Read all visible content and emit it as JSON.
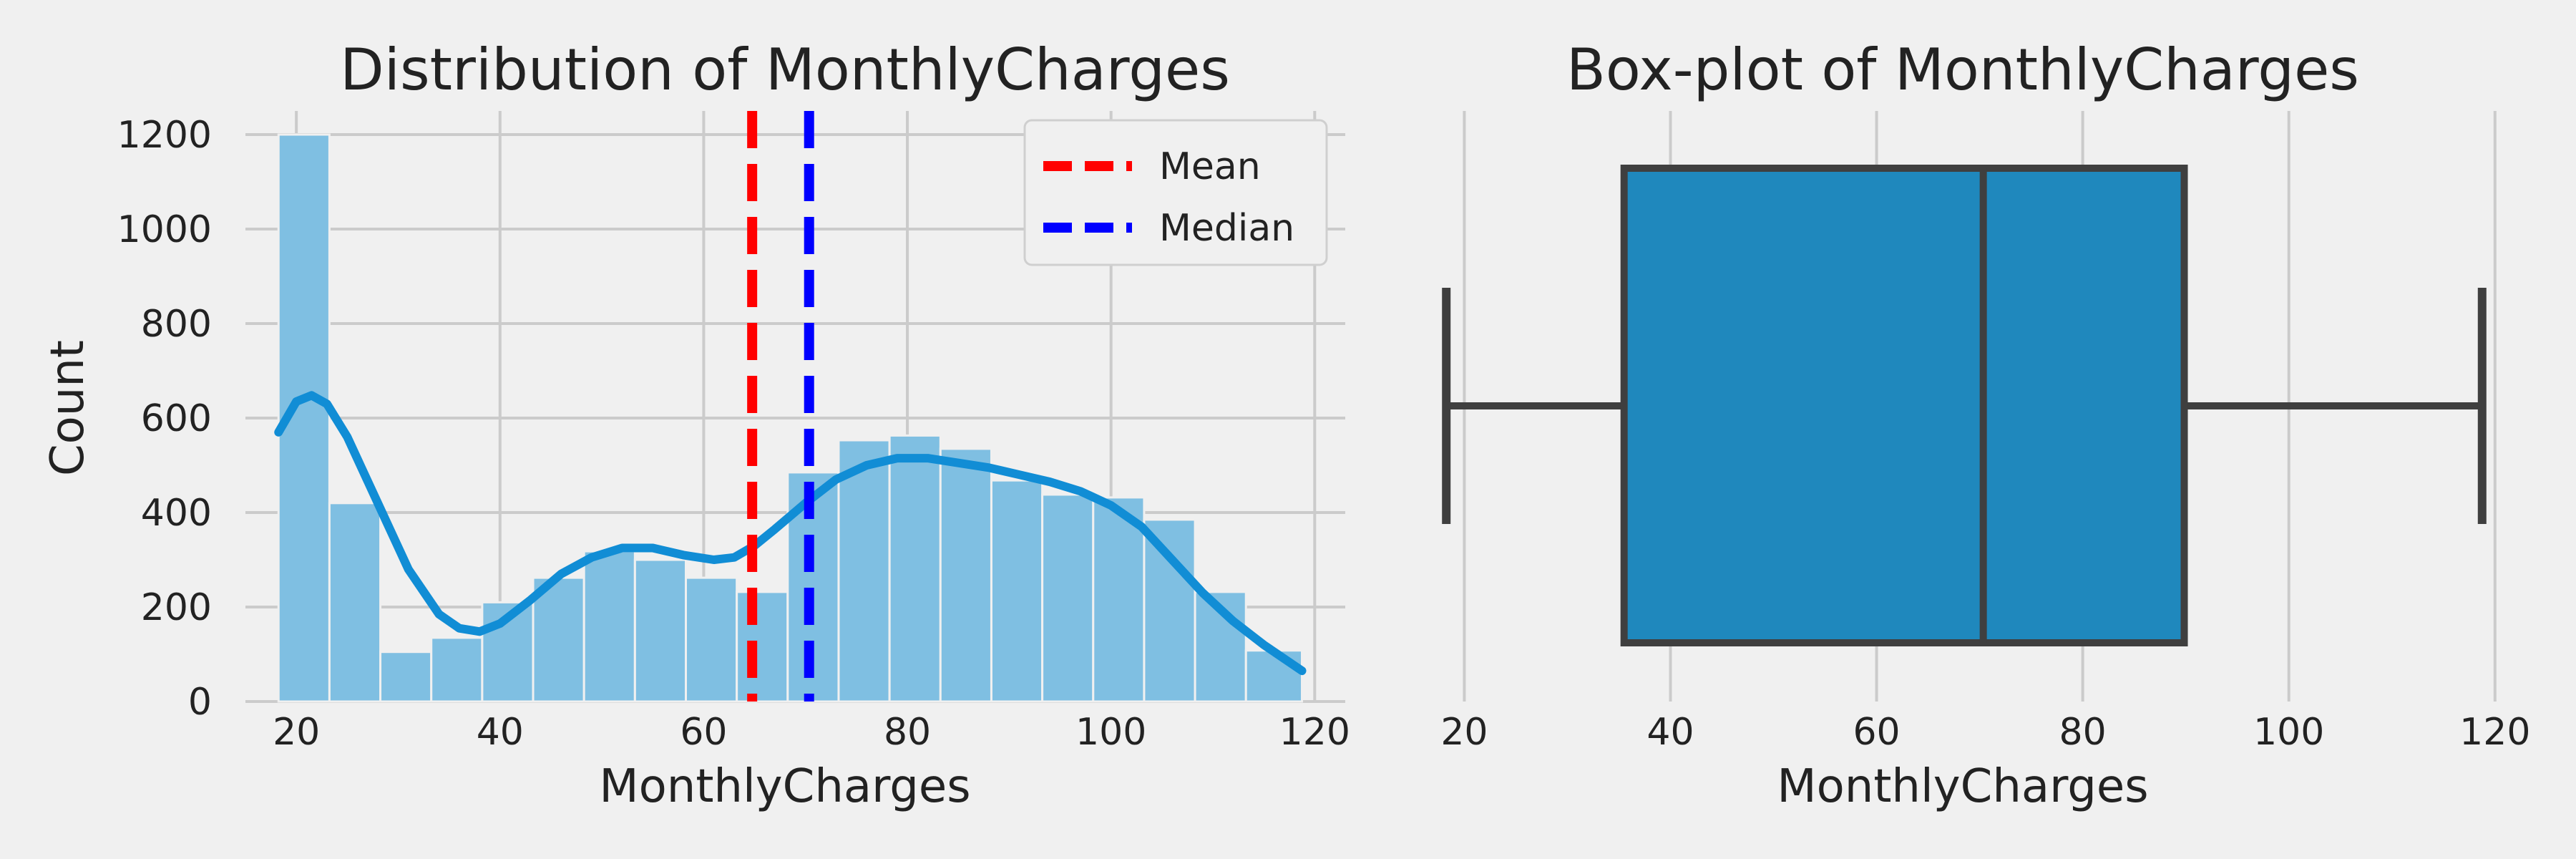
{
  "colors": {
    "background": "#f0f0f0",
    "grid": "#cbcbcb",
    "bars": "#7fbfe2",
    "kde": "#118dd5",
    "box": "#1f88bd",
    "box_edge": "#3f3f3f",
    "mean": "#ff0000",
    "median": "#0000ff"
  },
  "chart_data": [
    {
      "type": "histogram",
      "title": "Distribution of MonthlyCharges",
      "xlabel": "MonthlyCharges",
      "ylabel": "Count",
      "xlim": [
        15,
        123
      ],
      "ylim": [
        0,
        1250
      ],
      "xticks": [
        20,
        40,
        60,
        80,
        100,
        120
      ],
      "yticks": [
        0,
        200,
        400,
        600,
        800,
        1000,
        1200
      ],
      "grid": true,
      "bins": [
        {
          "x0": 18.25,
          "x1": 23.25,
          "count": 1200
        },
        {
          "x0": 23.25,
          "x1": 28.25,
          "count": 420
        },
        {
          "x0": 28.25,
          "x1": 33.25,
          "count": 105
        },
        {
          "x0": 33.25,
          "x1": 38.25,
          "count": 135
        },
        {
          "x0": 38.25,
          "x1": 43.25,
          "count": 210
        },
        {
          "x0": 43.25,
          "x1": 48.25,
          "count": 262
        },
        {
          "x0": 48.25,
          "x1": 53.25,
          "count": 318
        },
        {
          "x0": 53.25,
          "x1": 58.25,
          "count": 300
        },
        {
          "x0": 58.25,
          "x1": 63.25,
          "count": 262
        },
        {
          "x0": 63.25,
          "x1": 68.25,
          "count": 232
        },
        {
          "x0": 68.25,
          "x1": 73.25,
          "count": 485
        },
        {
          "x0": 73.25,
          "x1": 78.25,
          "count": 553
        },
        {
          "x0": 78.25,
          "x1": 83.25,
          "count": 563
        },
        {
          "x0": 83.25,
          "x1": 88.25,
          "count": 535
        },
        {
          "x0": 88.25,
          "x1": 93.25,
          "count": 468
        },
        {
          "x0": 93.25,
          "x1": 98.25,
          "count": 438
        },
        {
          "x0": 98.25,
          "x1": 103.25,
          "count": 432
        },
        {
          "x0": 103.25,
          "x1": 108.25,
          "count": 385
        },
        {
          "x0": 108.25,
          "x1": 113.25,
          "count": 232
        },
        {
          "x0": 113.25,
          "x1": 118.75,
          "count": 108
        }
      ],
      "kde": {
        "x": [
          18.25,
          20,
          21.5,
          23,
          25,
          28,
          31,
          34,
          36,
          38,
          40,
          43,
          46,
          49,
          52,
          55,
          58,
          61,
          63,
          65,
          67,
          70,
          73,
          76,
          79,
          82,
          85,
          88,
          91,
          94,
          97,
          100,
          103,
          106,
          109,
          112,
          115,
          118.75
        ],
        "y": [
          570,
          635,
          648,
          630,
          560,
          420,
          280,
          185,
          155,
          148,
          165,
          215,
          270,
          305,
          325,
          325,
          310,
          300,
          305,
          330,
          365,
          420,
          470,
          500,
          515,
          515,
          505,
          495,
          480,
          465,
          445,
          415,
          370,
          300,
          230,
          170,
          120,
          65
        ]
      },
      "vlines": [
        {
          "name": "Mean",
          "x": 64.76
        },
        {
          "name": "Median",
          "x": 70.35
        }
      ],
      "legend": {
        "placement": "top-right",
        "entries": [
          "Mean",
          "Median"
        ]
      }
    },
    {
      "type": "box",
      "title": "Box-plot of MonthlyCharges",
      "xlabel": "MonthlyCharges",
      "xlim": [
        14,
        123
      ],
      "xticks": [
        20,
        40,
        60,
        80,
        100,
        120
      ],
      "grid": true,
      "min": 18.25,
      "q1": 35.5,
      "median": 70.35,
      "q3": 89.85,
      "max": 118.75
    }
  ]
}
